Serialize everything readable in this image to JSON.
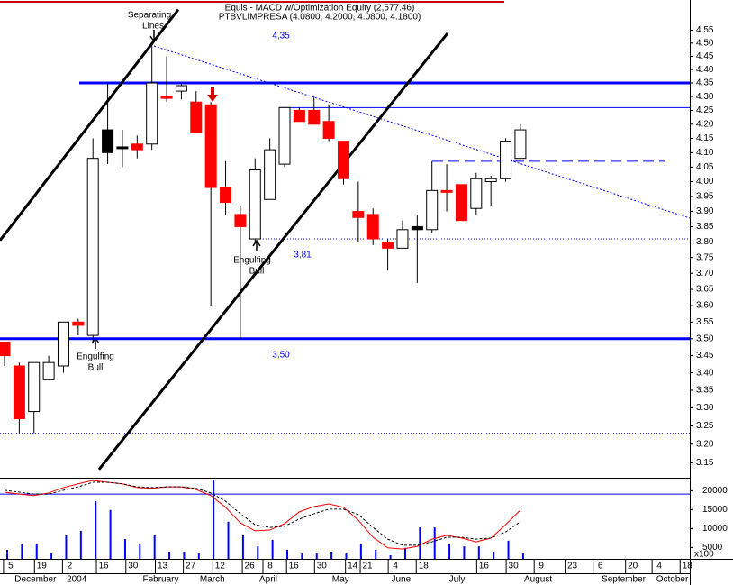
{
  "chart_data": [
    {
      "type": "candlestick",
      "title": "Equis - MACD  w/Optimization Equity (2,577.46)",
      "subtitle": "PTBVLIMPRESA (4.0800, 4.2000, 4.0800, 4.1800)",
      "log_scale": true,
      "xlim": [
        -0.305,
        46.49
      ],
      "ylim": [
        3.11,
        4.65
      ],
      "x": [
        0,
        1,
        2,
        3,
        4,
        5,
        6,
        7,
        8,
        9,
        10,
        11,
        12,
        13,
        14,
        15,
        16,
        17,
        18,
        19,
        20,
        21,
        22,
        23,
        24,
        25,
        26,
        27,
        28,
        29,
        30,
        31,
        32,
        33,
        34,
        35
      ],
      "open": [
        3.49,
        3.42,
        3.29,
        3.38,
        3.42,
        3.55,
        3.51,
        4.18,
        4.12,
        4.13,
        4.13,
        4.3,
        4.32,
        4.28,
        4.27,
        3.98,
        3.89,
        3.81,
        3.94,
        4.06,
        4.25,
        4.25,
        4.21,
        4.14,
        3.9,
        3.89,
        3.8,
        3.78,
        3.85,
        3.84,
        3.97,
        3.99,
        3.91,
        4.0,
        4.01,
        4.08
      ],
      "high": [
        3.49,
        3.43,
        3.43,
        3.45,
        3.55,
        3.56,
        4.15,
        4.35,
        4.18,
        4.16,
        4.5,
        4.45,
        4.35,
        4.32,
        4.28,
        4.07,
        3.92,
        4.08,
        4.15,
        4.26,
        4.26,
        4.3,
        4.27,
        4.14,
        4.0,
        3.91,
        3.81,
        3.87,
        3.89,
        4.07,
        4.06,
        3.99,
        4.03,
        4.02,
        4.15,
        4.2
      ],
      "low": [
        3.42,
        3.23,
        3.23,
        3.38,
        3.4,
        3.51,
        3.49,
        4.06,
        4.05,
        4.08,
        4.11,
        4.28,
        4.29,
        4.17,
        3.6,
        3.89,
        3.5,
        3.8,
        3.94,
        4.05,
        4.21,
        4.2,
        4.14,
        3.99,
        3.8,
        3.79,
        3.71,
        3.78,
        3.67,
        3.83,
        3.9,
        3.87,
        3.89,
        3.92,
        4.0,
        4.08
      ],
      "close": [
        3.45,
        3.27,
        3.43,
        3.43,
        3.55,
        3.54,
        4.08,
        4.1,
        4.12,
        4.11,
        4.35,
        4.3,
        4.34,
        4.17,
        3.98,
        3.93,
        3.85,
        4.04,
        4.11,
        4.26,
        4.21,
        4.2,
        4.15,
        4.01,
        3.88,
        3.81,
        3.78,
        3.84,
        3.84,
        3.97,
        3.97,
        3.87,
        4.01,
        4.01,
        4.14,
        4.18
      ],
      "candle_colors": [
        "#ff0000",
        "#ff0000",
        "#ffffff",
        "#ffffff",
        "#ffffff",
        "#ff0000",
        "#ffffff",
        "#000000",
        "#000000",
        "#ff0000",
        "#ffffff",
        "#ff0000",
        "#ffffff",
        "#ff0000",
        "#ff0000",
        "#ff0000",
        "#ff0000",
        "#ffffff",
        "#ffffff",
        "#ffffff",
        "#ff0000",
        "#ff0000",
        "#ff0000",
        "#ff0000",
        "#ff0000",
        "#ff0000",
        "#ff0000",
        "#ffffff",
        "#000000",
        "#ffffff",
        "#ff0000",
        "#ff0000",
        "#ffffff",
        "#ffffff",
        "#ffffff",
        "#ffffff"
      ],
      "yticks": [
        {
          "value": 3.15,
          "label": "3.15"
        },
        {
          "value": 3.2,
          "label": "3.20"
        },
        {
          "value": 3.25,
          "label": "3.25"
        },
        {
          "value": 3.3,
          "label": "3.30"
        },
        {
          "value": 3.35,
          "label": "3.35"
        },
        {
          "value": 3.4,
          "label": "3.40"
        },
        {
          "value": 3.45,
          "label": "3.45"
        },
        {
          "value": 3.5,
          "label": "3.50"
        },
        {
          "value": 3.55,
          "label": "3.55"
        },
        {
          "value": 3.6,
          "label": "3.60"
        },
        {
          "value": 3.65,
          "label": "3.65"
        },
        {
          "value": 3.7,
          "label": "3.70"
        },
        {
          "value": 3.75,
          "label": "3.75"
        },
        {
          "value": 3.8,
          "label": "3.80"
        },
        {
          "value": 3.85,
          "label": "3.85"
        },
        {
          "value": 3.9,
          "label": "3.90"
        },
        {
          "value": 3.95,
          "label": "3.95"
        },
        {
          "value": 4.0,
          "label": "4.00"
        },
        {
          "value": 4.05,
          "label": "4.05"
        },
        {
          "value": 4.1,
          "label": "4.10"
        },
        {
          "value": 4.15,
          "label": "4.15"
        },
        {
          "value": 4.2,
          "label": "4.20"
        },
        {
          "value": 4.25,
          "label": "4.25"
        },
        {
          "value": 4.3,
          "label": "4.30"
        },
        {
          "value": 4.35,
          "label": "4.35"
        },
        {
          "value": 4.4,
          "label": "4.40"
        },
        {
          "value": 4.45,
          "label": "4.45"
        },
        {
          "value": 4.5,
          "label": "4.50"
        },
        {
          "value": 4.55,
          "label": "4.55"
        }
      ],
      "lines": [
        {
          "x": [
            5.07,
            46.49
          ],
          "y": [
            4.35,
            4.35
          ],
          "color": "#0000ff",
          "width": 3,
          "label": "4,35"
        },
        {
          "x": [
            -0.305,
            46.49
          ],
          "y": [
            3.5,
            3.5
          ],
          "color": "#0000ff",
          "width": 3,
          "label": "3,50"
        },
        {
          "x": [
            16.8,
            46.49
          ],
          "y": [
            3.81,
            3.81
          ],
          "color": "#0000ff",
          "width": 1,
          "dash": "1,2",
          "label": "3,81"
        },
        {
          "x": [
            18.63,
            46.49
          ],
          "y": [
            4.26,
            4.26
          ],
          "color": "#0000ff",
          "width": 1
        },
        {
          "x": [
            29.02,
            44.78
          ],
          "y": [
            4.07,
            4.07
          ],
          "color": "#0000ff",
          "width": 1,
          "dash": "12,6"
        },
        {
          "x": [
            -0.305,
            46.49
          ],
          "y": [
            3.23,
            3.23
          ],
          "color": "#0000ff",
          "width": 1,
          "dash": "1,2"
        },
        {
          "x": [
            10.14,
            46.49
          ],
          "y": [
            4.489,
            3.878
          ],
          "color": "#0000ff",
          "width": 1,
          "dash": "2,2"
        },
        {
          "x": [
            -0.305,
            11.79
          ],
          "y": [
            3.805,
            4.63
          ],
          "color": "#000000",
          "width": 3
        },
        {
          "x": [
            6.41,
            30.05
          ],
          "y": [
            3.132,
            4.537
          ],
          "color": "#000000",
          "width": 3
        }
      ],
      "annotations": [
        {
          "lines": [
            "Separating",
            "Lines"
          ]
        },
        {
          "lines": [
            "Engulfing",
            "Bull"
          ]
        },
        {
          "lines": [
            "Engulfing",
            "Bull"
          ]
        }
      ]
    },
    {
      "type": "bar",
      "xlim": [
        -0.305,
        46.49
      ],
      "ylim": [
        2000,
        23400
      ],
      "yticks": [
        5000,
        10000,
        15000,
        20000
      ],
      "unit_label": "x100",
      "hline": 19100,
      "series": [
        {
          "kind": "bar",
          "color": "#0000ff",
          "values": [
            4400,
            5800,
            5800,
            3400,
            8200,
            9400,
            17200,
            14900,
            7200,
            5800,
            8200,
            3900,
            3900,
            3400,
            22900,
            11800,
            8200,
            5300,
            7000,
            4400,
            3400,
            3400,
            3900,
            3400,
            5800,
            4400,
            2950,
            4900,
            10300,
            10300,
            5800,
            5300,
            5300,
            3900,
            6800,
            3400
          ]
        },
        {
          "kind": "line",
          "color": "#ff0000",
          "values": [
            19600,
            19100,
            18700,
            19400,
            20800,
            21800,
            22700,
            22200,
            21800,
            20800,
            20600,
            21000,
            21000,
            20300,
            18700,
            15600,
            11500,
            9400,
            9600,
            11300,
            14400,
            15800,
            16500,
            15600,
            12200,
            7700,
            4900,
            4600,
            5300,
            7200,
            8200,
            7500,
            6500,
            7500,
            11000,
            14900
          ]
        },
        {
          "kind": "line",
          "color": "#000000",
          "dash": "3,2",
          "values": [
            20100,
            19600,
            19100,
            19100,
            20100,
            21000,
            22200,
            22200,
            21800,
            21000,
            20800,
            21000,
            21000,
            20600,
            19400,
            17200,
            13900,
            11000,
            10300,
            10600,
            12500,
            13900,
            15100,
            15100,
            13700,
            10300,
            7200,
            5600,
            5600,
            6500,
            7700,
            7700,
            7200,
            7500,
            9100,
            11800
          ]
        }
      ],
      "xticks": [
        {
          "value": 0.3,
          "label": "5"
        },
        {
          "value": 2.4,
          "label": "19"
        },
        {
          "value": 4.3,
          "label": "2"
        },
        {
          "value": 6.6,
          "label": "16"
        },
        {
          "value": 8.6,
          "label": "30"
        },
        {
          "value": 10.6,
          "label": "13"
        },
        {
          "value": 12.5,
          "label": "27"
        },
        {
          "value": 14.5,
          "label": "12"
        },
        {
          "value": 16.5,
          "label": "26"
        },
        {
          "value": 17.9,
          "label": "8"
        },
        {
          "value": 19.5,
          "label": "16"
        },
        {
          "value": 21.4,
          "label": "30"
        },
        {
          "value": 23.5,
          "label": "14"
        },
        {
          "value": 24.5,
          "label": "21"
        },
        {
          "value": 26.4,
          "label": "4"
        },
        {
          "value": 28.3,
          "label": "18"
        },
        {
          "value": 32.4,
          "label": "16"
        },
        {
          "value": 34.4,
          "label": "30"
        },
        {
          "value": 36.3,
          "label": "9"
        },
        {
          "value": 38.4,
          "label": "23"
        },
        {
          "value": 40.3,
          "label": "6"
        },
        {
          "value": 42.5,
          "label": "20"
        },
        {
          "value": 44.3,
          "label": "4"
        },
        {
          "value": 46.2,
          "label": "18"
        }
      ],
      "month_ticks": [
        {
          "value": 2.1,
          "label": "December"
        },
        {
          "value": 4.9,
          "label": "2004"
        },
        {
          "value": 10.6,
          "label": "February"
        },
        {
          "value": 14.1,
          "label": "March"
        },
        {
          "value": 17.9,
          "label": "April"
        },
        {
          "value": 22.8,
          "label": "May"
        },
        {
          "value": 26.9,
          "label": "June"
        },
        {
          "value": 30.7,
          "label": "July"
        },
        {
          "value": 36.2,
          "label": "August"
        },
        {
          "value": 42.0,
          "label": "September"
        },
        {
          "value": 45.3,
          "label": "October"
        }
      ]
    }
  ]
}
